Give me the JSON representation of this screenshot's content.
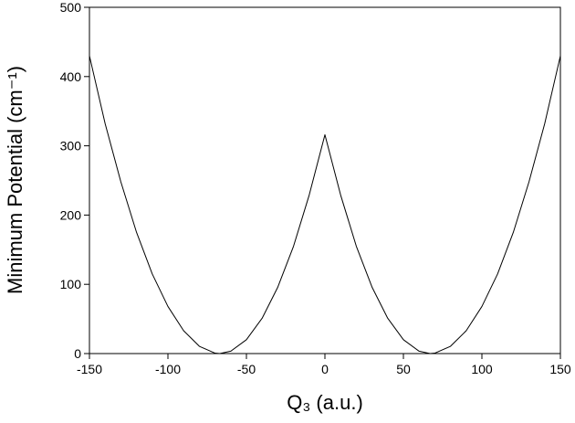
{
  "chart_data": {
    "type": "line",
    "xlabel": "Q₃ (a.u.)",
    "ylabel": "Minimum Potential (cm⁻¹)",
    "x": [
      -150,
      -140,
      -130,
      -120,
      -110,
      -100,
      -90,
      -80,
      -70,
      -67,
      -60,
      -50,
      -40,
      -30,
      -20,
      -10,
      0,
      10,
      20,
      30,
      40,
      50,
      60,
      67,
      70,
      80,
      90,
      100,
      110,
      120,
      130,
      140,
      150
    ],
    "series": [
      {
        "color": "#000000",
        "values": [
          430,
          332,
          248,
          175,
          115,
          68,
          33,
          10.5,
          0.6,
          0,
          3.4,
          20,
          51,
          96,
          155,
          229,
          316,
          229,
          155,
          96,
          51,
          20,
          3.4,
          0,
          0.6,
          10.5,
          33,
          68,
          115,
          175,
          248,
          332,
          430
        ]
      }
    ],
    "xlim": [
      -150,
      150
    ],
    "xticks": [
      -150,
      -100,
      -50,
      0,
      50,
      100,
      150
    ],
    "ylim": [
      0,
      500
    ],
    "yticks": [
      0,
      100,
      200,
      300,
      400,
      500
    ]
  }
}
